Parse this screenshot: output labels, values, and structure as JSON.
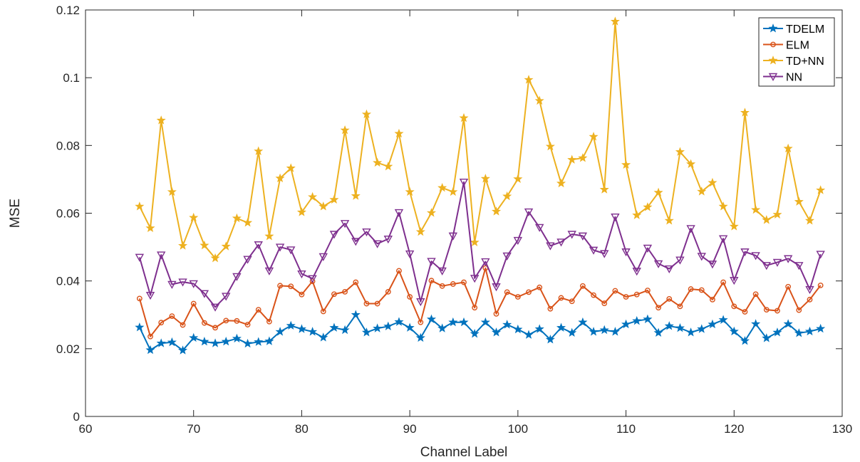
{
  "chart_data": {
    "type": "line",
    "title": "",
    "xlabel": "Channel Label",
    "ylabel": "MSE",
    "xlim": [
      60,
      130
    ],
    "ylim": [
      0,
      0.12
    ],
    "xticks": [
      "60",
      "70",
      "80",
      "90",
      "100",
      "110",
      "120",
      "130"
    ],
    "yticks": [
      "0",
      "0.02",
      "0.04",
      "0.06",
      "0.08",
      "0.1",
      "0.12"
    ],
    "grid": false,
    "legend_position": "top-right",
    "x": [
      65,
      66,
      67,
      68,
      69,
      70,
      71,
      72,
      73,
      74,
      75,
      76,
      77,
      78,
      79,
      80,
      81,
      82,
      83,
      84,
      85,
      86,
      87,
      88,
      89,
      90,
      91,
      92,
      93,
      94,
      95,
      96,
      97,
      98,
      99,
      100,
      101,
      102,
      103,
      104,
      105,
      106,
      107,
      108,
      109,
      110,
      111,
      112,
      113,
      114,
      115,
      116,
      117,
      118,
      119,
      120,
      121,
      122,
      123,
      124,
      125,
      126,
      127,
      128
    ],
    "series": [
      {
        "name": "TDELM",
        "color": "#0072BD",
        "marker": "star",
        "values": [
          0.0263,
          0.0196,
          0.0216,
          0.0219,
          0.0195,
          0.0232,
          0.0221,
          0.0216,
          0.0221,
          0.023,
          0.0215,
          0.022,
          0.0222,
          0.025,
          0.0268,
          0.0258,
          0.025,
          0.0233,
          0.0262,
          0.0255,
          0.03,
          0.0248,
          0.026,
          0.0266,
          0.0279,
          0.0262,
          0.0232,
          0.0287,
          0.026,
          0.0278,
          0.0278,
          0.0244,
          0.0278,
          0.0248,
          0.0271,
          0.0257,
          0.0241,
          0.0258,
          0.0227,
          0.0262,
          0.0247,
          0.0278,
          0.025,
          0.0255,
          0.025,
          0.0272,
          0.0282,
          0.0287,
          0.0247,
          0.0267,
          0.0261,
          0.0248,
          0.0258,
          0.0272,
          0.0285,
          0.0251,
          0.0223,
          0.0273,
          0.0231,
          0.0248,
          0.0273,
          0.0246,
          0.0251,
          0.0259
        ]
      },
      {
        "name": "ELM",
        "color": "#D95319",
        "marker": "circle",
        "values": [
          0.0348,
          0.0236,
          0.0277,
          0.0296,
          0.027,
          0.0333,
          0.0276,
          0.0262,
          0.0283,
          0.0282,
          0.0271,
          0.0315,
          0.028,
          0.0386,
          0.0384,
          0.036,
          0.0399,
          0.031,
          0.0361,
          0.0368,
          0.0396,
          0.0333,
          0.0333,
          0.0368,
          0.043,
          0.0353,
          0.0278,
          0.0401,
          0.0385,
          0.0391,
          0.0396,
          0.0321,
          0.0438,
          0.0303,
          0.0367,
          0.0353,
          0.0367,
          0.0381,
          0.0318,
          0.035,
          0.034,
          0.0385,
          0.0358,
          0.0334,
          0.0371,
          0.0353,
          0.036,
          0.0372,
          0.0321,
          0.0347,
          0.0325,
          0.0376,
          0.0373,
          0.0345,
          0.0396,
          0.0325,
          0.0309,
          0.0361,
          0.0315,
          0.0312,
          0.0383,
          0.0314,
          0.0345,
          0.0387
        ]
      },
      {
        "name": "TD+NN",
        "color": "#EDB120",
        "marker": "star",
        "values": [
          0.062,
          0.0556,
          0.0874,
          0.0663,
          0.0504,
          0.0587,
          0.0505,
          0.0467,
          0.0502,
          0.0585,
          0.0572,
          0.0783,
          0.0532,
          0.0703,
          0.0733,
          0.0603,
          0.0648,
          0.062,
          0.064,
          0.0845,
          0.0651,
          0.0892,
          0.0749,
          0.0738,
          0.0835,
          0.0663,
          0.0545,
          0.0601,
          0.0675,
          0.0663,
          0.0881,
          0.0514,
          0.0702,
          0.0605,
          0.065,
          0.0701,
          0.0994,
          0.0932,
          0.0797,
          0.0688,
          0.0758,
          0.0763,
          0.0826,
          0.067,
          0.1166,
          0.0743,
          0.0594,
          0.0618,
          0.0661,
          0.0578,
          0.0781,
          0.0745,
          0.0664,
          0.069,
          0.062,
          0.0561,
          0.0897,
          0.061,
          0.058,
          0.0596,
          0.0791,
          0.0634,
          0.0578,
          0.0668
        ]
      },
      {
        "name": "NN",
        "color": "#7E2F8E",
        "marker": "triangle-down",
        "values": [
          0.047,
          0.0358,
          0.0477,
          0.039,
          0.0397,
          0.0392,
          0.0363,
          0.0323,
          0.0355,
          0.0413,
          0.0464,
          0.0507,
          0.043,
          0.05,
          0.0492,
          0.0421,
          0.0407,
          0.0472,
          0.0538,
          0.057,
          0.0517,
          0.0545,
          0.051,
          0.0524,
          0.0602,
          0.048,
          0.0339,
          0.0458,
          0.043,
          0.0533,
          0.0692,
          0.0408,
          0.0457,
          0.0383,
          0.0474,
          0.052,
          0.0604,
          0.0558,
          0.0504,
          0.0515,
          0.0538,
          0.0533,
          0.0491,
          0.0481,
          0.0589,
          0.0486,
          0.0429,
          0.0497,
          0.0451,
          0.0436,
          0.0462,
          0.0555,
          0.0473,
          0.045,
          0.0525,
          0.0402,
          0.0486,
          0.0475,
          0.0446,
          0.0455,
          0.0466,
          0.0446,
          0.0375,
          0.0479
        ]
      }
    ]
  }
}
